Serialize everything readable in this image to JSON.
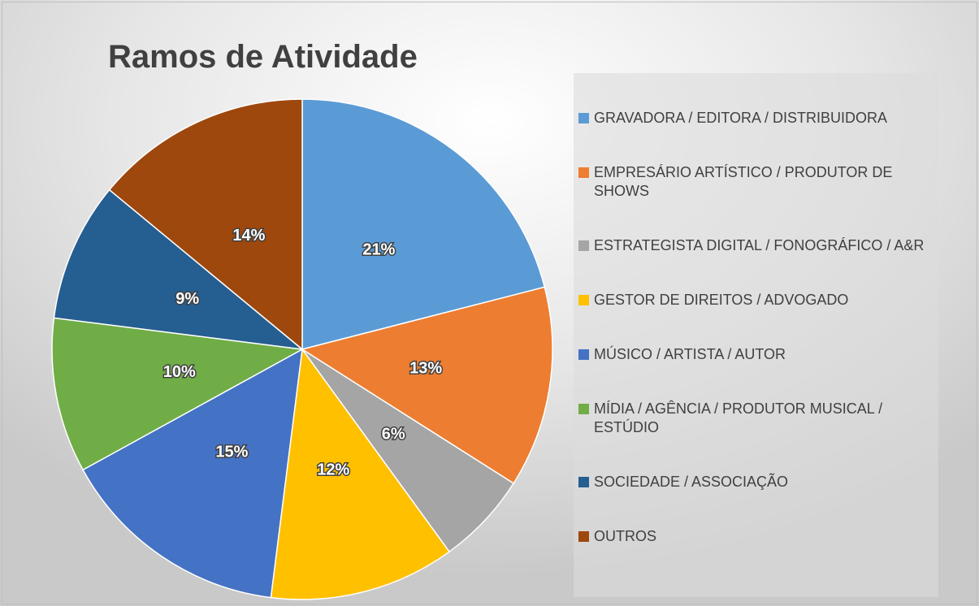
{
  "chart_data": {
    "type": "pie",
    "title": "Ramos de Atividade",
    "categories": [
      "GRAVADORA / EDITORA / DISTRIBUIDORA",
      "EMPRESÁRIO ARTÍSTICO / PRODUTOR DE SHOWS",
      "ESTRATEGISTA DIGITAL / FONOGRÁFICO / A&R",
      "GESTOR DE DIREITOS / ADVOGADO",
      "MÚSICO / ARTISTA / AUTOR",
      "MÍDIA / AGÊNCIA / PRODUTOR MUSICAL / ESTÚDIO",
      "SOCIEDADE / ASSOCIAÇÃO",
      "OUTROS"
    ],
    "values": [
      21,
      13,
      6,
      12,
      15,
      10,
      9,
      14
    ],
    "value_labels": [
      "21%",
      "13%",
      "6%",
      "12%",
      "15%",
      "10%",
      "9%",
      "14%"
    ],
    "colors": [
      "#5b9bd5",
      "#ed7d31",
      "#a5a5a5",
      "#ffc000",
      "#4472c4",
      "#70ad47",
      "#255e91",
      "#9e480e"
    ],
    "legend": "right"
  }
}
